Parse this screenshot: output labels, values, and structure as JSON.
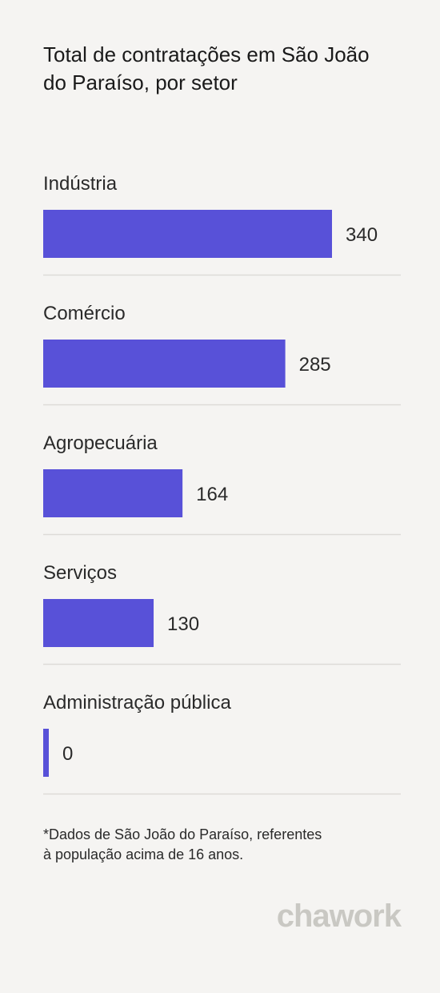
{
  "chart_data": {
    "type": "bar",
    "orientation": "horizontal",
    "title": "Total de contratações em São João do Paraíso, por setor",
    "categories": [
      "Indústria",
      "Comércio",
      "Agropecuária",
      "Serviços",
      "Administração pública"
    ],
    "values": [
      340,
      285,
      164,
      130,
      0
    ],
    "value_labels": [
      "340",
      "285",
      "164",
      "130",
      "0"
    ],
    "bar_color": "#5851d8",
    "grid": false,
    "legend": "none"
  },
  "footnote": {
    "line1": "*Dados de São João do Paraíso, referentes",
    "line2": "à população acima de 16 anos."
  },
  "brand": {
    "name": "chawork",
    "color": "#c9c8c3"
  }
}
